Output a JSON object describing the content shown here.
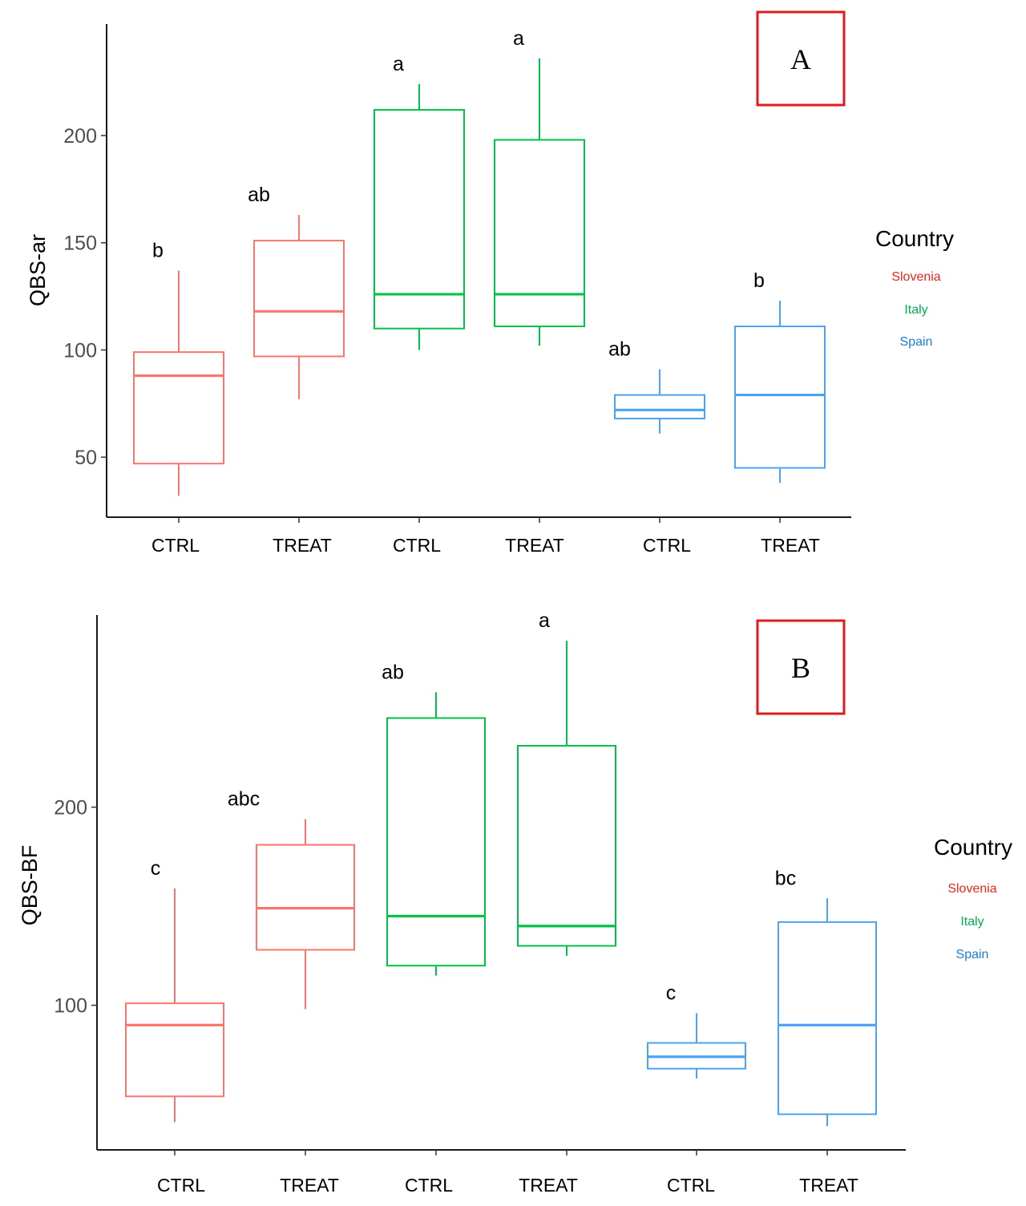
{
  "colors": {
    "Slovenia": "#f8766d",
    "Italy": "#00c24a",
    "Spain": "#4da3f3",
    "legend_Slovenia": "#e8261f",
    "legend_Italy": "#00b050",
    "legend_Spain": "#1a7fd4",
    "panel_box": "#e01b1b"
  },
  "chart_data": [
    {
      "type": "box",
      "panel_label": "A",
      "ylabel": "QBS-ar",
      "xlabel": "",
      "ylim": [
        22,
        252
      ],
      "yticks": [
        50,
        100,
        150,
        200
      ],
      "legend": {
        "title": "Country",
        "entries": [
          "Slovenia",
          "Italy",
          "Spain"
        ],
        "position": "right"
      },
      "groups": [
        {
          "category": "CTRL",
          "country": "Slovenia",
          "min": 32,
          "q1": 47,
          "median": 88,
          "q3": 99,
          "max": 137,
          "letter": "b"
        },
        {
          "category": "TREAT",
          "country": "Slovenia",
          "min": 77,
          "q1": 97,
          "median": 118,
          "q3": 151,
          "max": 163,
          "letter": "ab"
        },
        {
          "category": "CTRL",
          "country": "Italy",
          "min": 100,
          "q1": 110,
          "median": 126,
          "q3": 212,
          "max": 224,
          "letter": "a"
        },
        {
          "category": "TREAT",
          "country": "Italy",
          "min": 102,
          "q1": 111,
          "median": 126,
          "q3": 198,
          "max": 236,
          "letter": "a"
        },
        {
          "category": "CTRL",
          "country": "Spain",
          "min": 61,
          "q1": 68,
          "median": 72,
          "q3": 79,
          "max": 91,
          "letter": "ab"
        },
        {
          "category": "TREAT",
          "country": "Spain",
          "min": 38,
          "q1": 45,
          "median": 79,
          "q3": 111,
          "max": 123,
          "letter": "b"
        }
      ]
    },
    {
      "type": "box",
      "panel_label": "B",
      "ylabel": "QBS-BF",
      "xlabel": "",
      "ylim": [
        27,
        297
      ],
      "yticks": [
        100,
        200
      ],
      "legend": {
        "title": "Country",
        "entries": [
          "Slovenia",
          "Italy",
          "Spain"
        ],
        "position": "right"
      },
      "groups": [
        {
          "category": "CTRL",
          "country": "Slovenia",
          "min": 41,
          "q1": 54,
          "median": 90,
          "q3": 101,
          "max": 159,
          "letter": "c"
        },
        {
          "category": "TREAT",
          "country": "Slovenia",
          "min": 98,
          "q1": 128,
          "median": 149,
          "q3": 181,
          "max": 194,
          "letter": "abc"
        },
        {
          "category": "CTRL",
          "country": "Italy",
          "min": 115,
          "q1": 120,
          "median": 145,
          "q3": 245,
          "max": 258,
          "letter": "ab"
        },
        {
          "category": "TREAT",
          "country": "Italy",
          "min": 125,
          "q1": 130,
          "median": 140,
          "q3": 231,
          "max": 284,
          "letter": "a"
        },
        {
          "category": "CTRL",
          "country": "Spain",
          "min": 63,
          "q1": 68,
          "median": 74,
          "q3": 81,
          "max": 96,
          "letter": "c"
        },
        {
          "category": "TREAT",
          "country": "Spain",
          "min": 39,
          "q1": 45,
          "median": 90,
          "q3": 142,
          "max": 154,
          "letter": "bc"
        }
      ]
    }
  ]
}
